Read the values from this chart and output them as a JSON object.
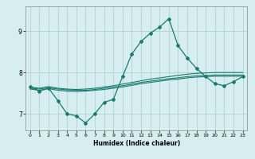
{
  "xlabel": "Humidex (Indice chaleur)",
  "ylabel": "",
  "bg_color": "#d6eef0",
  "line_color": "#1a7a6e",
  "grid_color": "#aacccc",
  "x_data": [
    0,
    1,
    2,
    3,
    4,
    5,
    6,
    7,
    8,
    9,
    10,
    11,
    12,
    13,
    14,
    15,
    16,
    17,
    18,
    19,
    20,
    21,
    22,
    23
  ],
  "y_main": [
    7.65,
    7.55,
    7.62,
    7.32,
    7.0,
    6.95,
    6.78,
    7.0,
    7.28,
    7.35,
    7.9,
    8.45,
    8.75,
    8.95,
    9.1,
    9.3,
    8.65,
    8.35,
    8.1,
    7.9,
    7.73,
    7.68,
    7.78,
    7.9
  ],
  "y_line2": [
    7.65,
    7.62,
    7.66,
    7.62,
    7.6,
    7.59,
    7.6,
    7.62,
    7.65,
    7.68,
    7.72,
    7.76,
    7.8,
    7.84,
    7.87,
    7.9,
    7.93,
    7.96,
    7.98,
    7.99,
    8.0,
    8.0,
    8.0,
    8.0
  ],
  "y_line3": [
    7.62,
    7.6,
    7.63,
    7.6,
    7.58,
    7.57,
    7.57,
    7.59,
    7.62,
    7.65,
    7.68,
    7.72,
    7.76,
    7.79,
    7.82,
    7.85,
    7.87,
    7.9,
    7.92,
    7.93,
    7.94,
    7.94,
    7.94,
    7.94
  ],
  "y_line4": [
    7.6,
    7.57,
    7.61,
    7.57,
    7.55,
    7.54,
    7.55,
    7.57,
    7.59,
    7.62,
    7.65,
    7.69,
    7.73,
    7.76,
    7.79,
    7.82,
    7.84,
    7.87,
    7.89,
    7.9,
    7.91,
    7.91,
    7.91,
    7.91
  ],
  "yticks": [
    7,
    8,
    9
  ],
  "xticks": [
    0,
    1,
    2,
    3,
    4,
    5,
    6,
    7,
    8,
    9,
    10,
    11,
    12,
    13,
    14,
    15,
    16,
    17,
    18,
    19,
    20,
    21,
    22,
    23
  ],
  "ylim": [
    6.6,
    9.6
  ],
  "xlim": [
    -0.5,
    23.5
  ]
}
